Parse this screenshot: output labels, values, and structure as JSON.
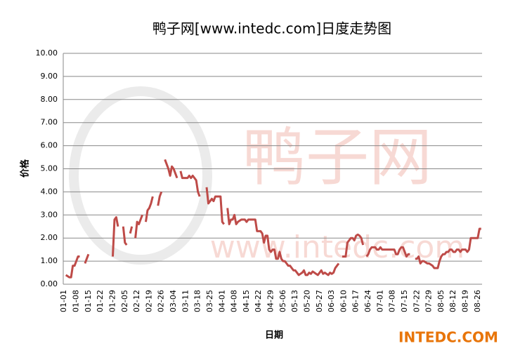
{
  "chart_data": {
    "type": "line",
    "title": "鸭子网[www.intedc.com]日度走势图",
    "xlabel": "日期",
    "ylabel": "价格",
    "annotations": [
      "鸭子网",
      "www.intedc.com",
      "INTEDC.COM"
    ],
    "categories": [
      "01-01",
      null,
      null,
      null,
      null,
      null,
      null,
      "01-08",
      null,
      null,
      null,
      null,
      null,
      null,
      "01-15",
      null,
      null,
      null,
      null,
      null,
      null,
      "01-22",
      null,
      null,
      null,
      null,
      null,
      null,
      "01-29",
      null,
      null,
      null,
      null,
      null,
      null,
      "02-05",
      null,
      null,
      null,
      null,
      null,
      null,
      "02-12",
      null,
      null,
      null,
      null,
      null,
      null,
      "02-19",
      null,
      null,
      null,
      null,
      null,
      null,
      "02-26",
      null,
      null,
      null,
      null,
      null,
      null,
      "03-04",
      null,
      null,
      null,
      null,
      null,
      null,
      "03-11",
      null,
      null,
      null,
      null,
      null,
      null,
      "03-18",
      null,
      null,
      null,
      null,
      null,
      null,
      "03-25",
      null,
      null,
      null,
      null,
      null,
      null,
      "04-01",
      null,
      null,
      null,
      null,
      null,
      null,
      "04-08",
      null,
      null,
      null,
      null,
      null,
      null,
      "04-15",
      null,
      null,
      null,
      null,
      null,
      null,
      "04-22",
      null,
      null,
      null,
      null,
      null,
      null,
      "04-29",
      null,
      null,
      null,
      null,
      null,
      null,
      "05-06",
      null,
      null,
      null,
      null,
      null,
      null,
      "05-13",
      null,
      null,
      null,
      null,
      null,
      null,
      "05-20",
      null,
      null,
      null,
      null,
      null,
      null,
      "05-27",
      null,
      null,
      null,
      null,
      null,
      null,
      "06-03",
      null,
      null,
      null,
      null,
      null,
      null,
      "06-10",
      null,
      null,
      null,
      null,
      null,
      null,
      "06-17",
      null,
      null,
      null,
      null,
      null,
      null,
      "06-24",
      null,
      null,
      null,
      null,
      null,
      null,
      "07-01",
      null,
      null,
      null,
      null,
      null,
      null,
      "07-08",
      null,
      null,
      null,
      null,
      null,
      null,
      "07-15",
      null,
      null,
      null,
      null,
      null,
      null,
      "07-22",
      null,
      null,
      null,
      null,
      null,
      null,
      "07-29",
      null,
      null,
      null,
      null,
      null,
      null,
      "08-05",
      null,
      null,
      null,
      null,
      null,
      null,
      "08-12",
      null,
      null,
      null,
      null,
      null,
      null,
      "08-19",
      null,
      null,
      null,
      null,
      null,
      null,
      "08-26",
      null,
      null
    ],
    "series": [
      {
        "name": "价格",
        "color": "#be4b48",
        "values": [
          null,
          0.4,
          0.35,
          0.3,
          0.3,
          0.8,
          0.8,
          1.0,
          1.2,
          1.2,
          null,
          null,
          0.9,
          1.1,
          1.3,
          null,
          null,
          null,
          null,
          null,
          null,
          null,
          null,
          null,
          null,
          null,
          null,
          null,
          1.2,
          2.8,
          2.9,
          2.5,
          null,
          null,
          2.5,
          1.8,
          1.7,
          null,
          2.2,
          2.5,
          null,
          2.0,
          2.7,
          2.6,
          2.8,
          3.0,
          null,
          2.7,
          3.2,
          3.3,
          3.5,
          3.8,
          null,
          null,
          3.4,
          3.8,
          4.0,
          null,
          5.4,
          5.2,
          5.0,
          4.7,
          5.1,
          5.0,
          4.8,
          4.6,
          null,
          4.9,
          4.6,
          4.6,
          4.6,
          4.6,
          4.7,
          4.6,
          4.7,
          4.6,
          4.5,
          4.0,
          3.8,
          null,
          null,
          null,
          4.2,
          3.5,
          3.6,
          3.7,
          3.6,
          3.8,
          3.8,
          3.8,
          3.8,
          2.7,
          2.6,
          null,
          3.3,
          2.6,
          2.8,
          2.8,
          3.0,
          2.6,
          2.7,
          2.75,
          2.8,
          2.8,
          2.8,
          2.7,
          2.8,
          2.8,
          2.8,
          2.8,
          2.8,
          2.3,
          2.3,
          2.3,
          2.2,
          1.8,
          2.1,
          2.1,
          1.5,
          1.4,
          1.5,
          1.5,
          1.1,
          1.1,
          1.4,
          1.1,
          1.0,
          1.0,
          0.9,
          0.8,
          0.8,
          0.7,
          0.6,
          0.6,
          0.5,
          0.4,
          0.45,
          0.5,
          0.6,
          0.4,
          0.4,
          0.5,
          0.45,
          0.55,
          0.5,
          0.45,
          0.4,
          0.5,
          0.6,
          0.45,
          0.5,
          0.45,
          0.4,
          0.5,
          0.45,
          0.5,
          0.7,
          0.8,
          0.9,
          null,
          1.2,
          1.2,
          1.2,
          1.8,
          1.9,
          2.0,
          2.0,
          1.9,
          2.1,
          2.15,
          2.1,
          2.0,
          1.7,
          null,
          1.2,
          1.3,
          1.5,
          1.6,
          1.6,
          1.6,
          1.5,
          1.5,
          1.6,
          1.5,
          1.5,
          1.5,
          1.5,
          1.5,
          1.5,
          1.5,
          1.5,
          1.3,
          1.3,
          1.5,
          1.6,
          1.6,
          1.4,
          1.2,
          1.3,
          1.3,
          null,
          null,
          1.1,
          1.1,
          1.2,
          0.9,
          1.0,
          1.0,
          0.95,
          0.9,
          0.9,
          0.85,
          0.8,
          0.7,
          0.7,
          0.7,
          1.0,
          1.2,
          1.3,
          1.3,
          1.4,
          1.4,
          1.5,
          1.5,
          1.4,
          1.4,
          1.5,
          1.5,
          1.4,
          1.5,
          1.5,
          1.5,
          1.4,
          1.5,
          2.0,
          2.0,
          2.0,
          2.0,
          2.0,
          2.4,
          2.4
        ]
      }
    ],
    "ylim": [
      0,
      10
    ],
    "yticks": [
      {
        "value": 0,
        "label": "0.00"
      },
      {
        "value": 1,
        "label": "1.00"
      },
      {
        "value": 2,
        "label": "2.00"
      },
      {
        "value": 3,
        "label": "3.00"
      },
      {
        "value": 4,
        "label": "4.00"
      },
      {
        "value": 5,
        "label": "5.00"
      },
      {
        "value": 6,
        "label": "6.00"
      },
      {
        "value": 7,
        "label": "7.00"
      },
      {
        "value": 8,
        "label": "8.00"
      },
      {
        "value": 9,
        "label": "9.00"
      },
      {
        "value": 10,
        "label": "10.00"
      }
    ],
    "grid": true
  }
}
